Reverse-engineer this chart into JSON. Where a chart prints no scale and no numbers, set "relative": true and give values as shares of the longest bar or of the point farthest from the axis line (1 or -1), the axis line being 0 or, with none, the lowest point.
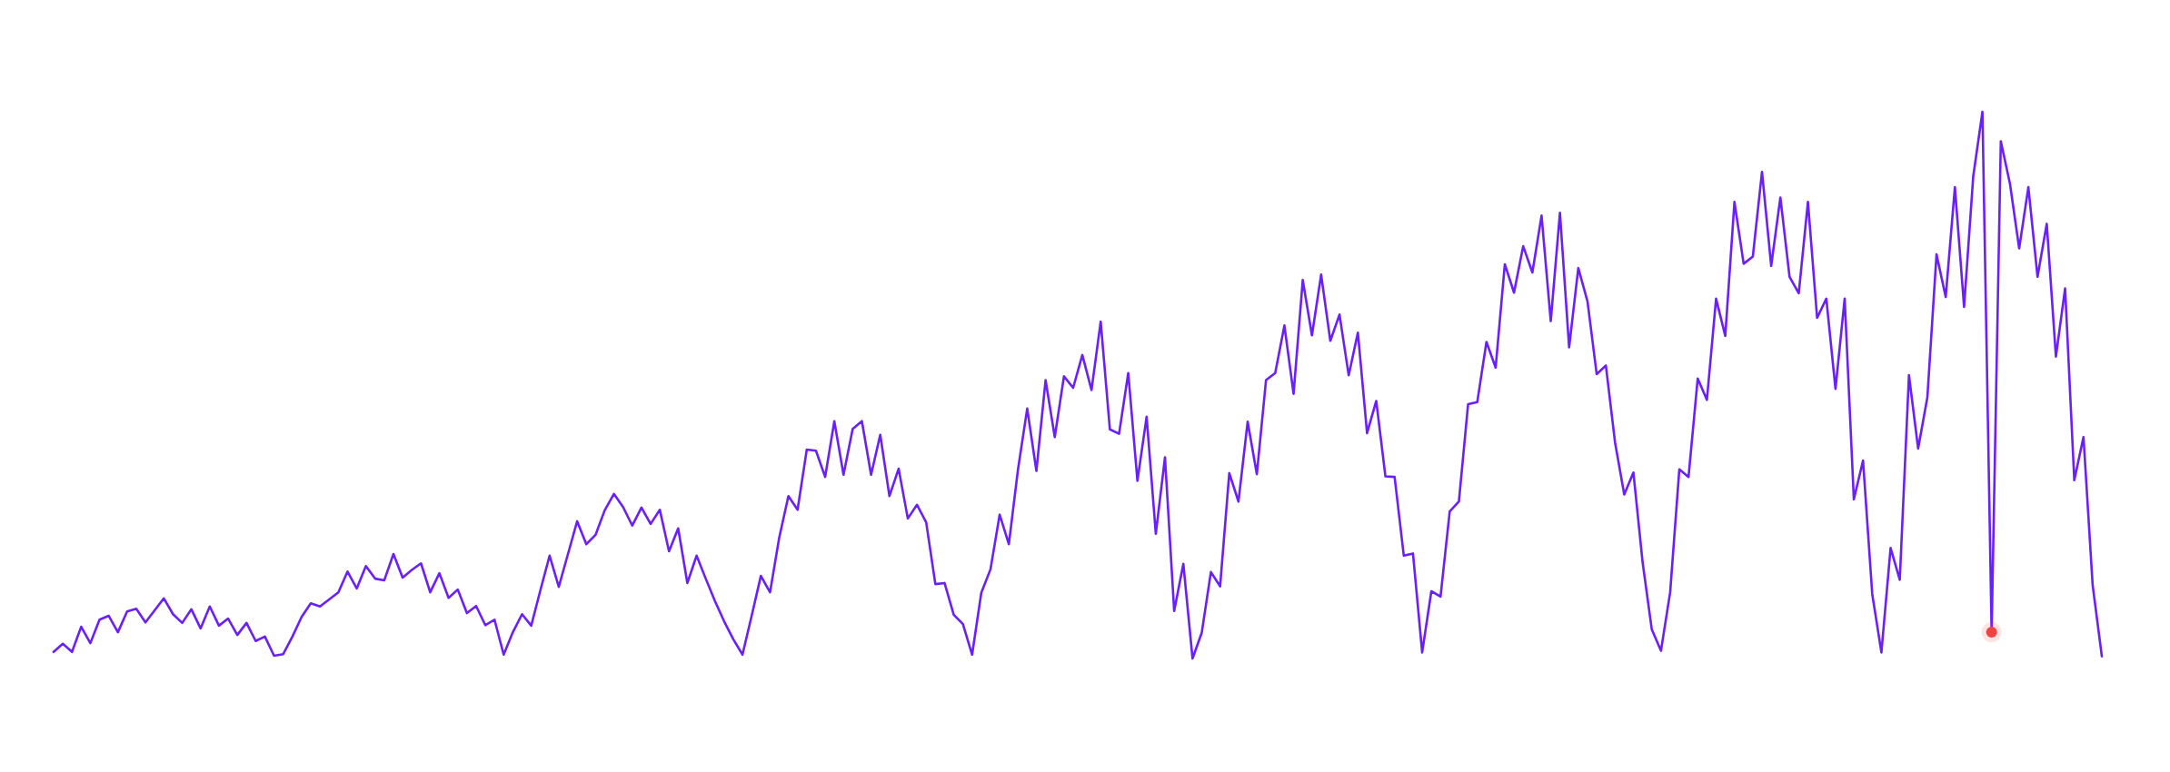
{
  "chart_data": {
    "type": "line",
    "relative": true,
    "categories": [
      null,
      null,
      null,
      null,
      null,
      null,
      null,
      null,
      null,
      null,
      null,
      null,
      null,
      null,
      null,
      null,
      null,
      null,
      null,
      null,
      null,
      null,
      null,
      null,
      null,
      null,
      null,
      null,
      null,
      null,
      null,
      null,
      null,
      null,
      null,
      null,
      null,
      null,
      null,
      null,
      null,
      null,
      null,
      null,
      null,
      null,
      null,
      null,
      null,
      null,
      null,
      null,
      null,
      null,
      null,
      null,
      null,
      null,
      null,
      null,
      null,
      null,
      null,
      null,
      null,
      null,
      null,
      null,
      null,
      null,
      null,
      null,
      null,
      null,
      null,
      null,
      null,
      null,
      null,
      null,
      null,
      null,
      null,
      null,
      null,
      null,
      null,
      null,
      null,
      null,
      null,
      null,
      null,
      null,
      null,
      null,
      null,
      null,
      null,
      null,
      null,
      null,
      null,
      null,
      null,
      null,
      null,
      null,
      null,
      null,
      null,
      null,
      null,
      null,
      null,
      null,
      null,
      null,
      null,
      null,
      null,
      null,
      null,
      null,
      null,
      null,
      null,
      null,
      null,
      null,
      null,
      null,
      null,
      null,
      null,
      null,
      null,
      null,
      null,
      null,
      null,
      null,
      null,
      null,
      null,
      null,
      null,
      null,
      null,
      null,
      null,
      null,
      null,
      null,
      null,
      null,
      null,
      null,
      null,
      null,
      null,
      null,
      null,
      null,
      null,
      null,
      null,
      null,
      null,
      null,
      null,
      null,
      null,
      null,
      null,
      null,
      null,
      null,
      null,
      null,
      null,
      null,
      null,
      null,
      null,
      null,
      null,
      null,
      null,
      null,
      null,
      null,
      null,
      null,
      null,
      null,
      null,
      null,
      null,
      null,
      null,
      null,
      null,
      null,
      null,
      null,
      null,
      null,
      null,
      null,
      null,
      null,
      null,
      null,
      null,
      null,
      null,
      null,
      null,
      null,
      null,
      null,
      null,
      null
    ],
    "series": [
      {
        "color": "#6a1fff",
        "values": [
          0.012,
          0.027,
          0.012,
          0.058,
          0.028,
          0.071,
          0.078,
          0.048,
          0.086,
          0.091,
          0.066,
          0.088,
          0.11,
          0.081,
          0.065,
          0.09,
          0.055,
          0.095,
          0.06,
          0.073,
          0.043,
          0.065,
          0.032,
          0.04,
          0.005,
          0.008,
          0.04,
          0.076,
          0.101,
          0.095,
          0.108,
          0.121,
          0.159,
          0.128,
          0.169,
          0.146,
          0.143,
          0.191,
          0.148,
          0.162,
          0.174,
          0.121,
          0.156,
          0.111,
          0.126,
          0.083,
          0.096,
          0.061,
          0.071,
          0.007,
          0.048,
          0.081,
          0.06,
          0.125,
          0.188,
          0.131,
          0.191,
          0.251,
          0.209,
          0.226,
          0.271,
          0.301,
          0.277,
          0.243,
          0.276,
          0.246,
          0.272,
          0.196,
          0.238,
          0.138,
          0.188,
          0.146,
          0.105,
          0.068,
          0.035,
          0.007,
          0.078,
          0.151,
          0.121,
          0.221,
          0.297,
          0.272,
          0.382,
          0.38,
          0.332,
          0.434,
          0.336,
          0.42,
          0.434,
          0.336,
          0.409,
          0.297,
          0.347,
          0.256,
          0.281,
          0.249,
          0.136,
          0.138,
          0.08,
          0.063,
          0.007,
          0.12,
          0.163,
          0.263,
          0.209,
          0.346,
          0.457,
          0.343,
          0.509,
          0.405,
          0.516,
          0.495,
          0.555,
          0.491,
          0.616,
          0.419,
          0.411,
          0.522,
          0.325,
          0.442,
          0.228,
          0.368,
          0.087,
          0.173,
          0.0,
          0.047,
          0.158,
          0.132,
          0.339,
          0.287,
          0.433,
          0.337,
          0.509,
          0.522,
          0.609,
          0.484,
          0.692,
          0.591,
          0.702,
          0.581,
          0.629,
          0.518,
          0.596,
          0.412,
          0.471,
          0.333,
          0.332,
          0.188,
          0.192,
          0.011,
          0.123,
          0.113,
          0.269,
          0.287,
          0.465,
          0.469,
          0.579,
          0.532,
          0.721,
          0.669,
          0.754,
          0.706,
          0.81,
          0.617,
          0.815,
          0.569,
          0.714,
          0.653,
          0.52,
          0.536,
          0.395,
          0.3,
          0.34,
          0.176,
          0.053,
          0.014,
          0.121,
          0.346,
          0.332,
          0.512,
          0.473,
          0.658,
          0.59,
          0.835,
          0.722,
          0.735,
          0.89,
          0.718,
          0.843,
          0.698,
          0.668,
          0.835,
          0.623,
          0.658,
          0.493,
          0.658,
          0.291,
          0.362,
          0.118,
          0.011,
          0.202,
          0.144,
          0.518,
          0.384,
          0.477,
          0.739,
          0.661,
          0.862,
          0.643,
          0.882,
          1,
          0.048,
          0.946,
          0.868,
          0.75,
          0.862,
          0.698,
          0.795,
          0.552,
          0.677,
          0.326,
          0.405,
          0.134,
          0.004
        ]
      }
    ]
  }
}
